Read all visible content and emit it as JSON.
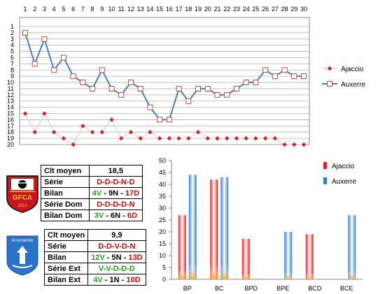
{
  "chart_data": [
    {
      "type": "line",
      "x": [
        1,
        2,
        3,
        4,
        5,
        6,
        7,
        8,
        9,
        10,
        11,
        12,
        13,
        14,
        15,
        16,
        17,
        18,
        19,
        20,
        21,
        22,
        23,
        24,
        25,
        26,
        27,
        28,
        29,
        30
      ],
      "ylim": [
        20,
        1
      ],
      "yticks": [
        1,
        2,
        3,
        4,
        5,
        6,
        7,
        8,
        9,
        10,
        11,
        12,
        13,
        14,
        15,
        16,
        17,
        18,
        19,
        20
      ],
      "legend_position": "right",
      "series": [
        {
          "name": "Ajaccio",
          "color": "#d42020",
          "line_color": "#e0e0e0",
          "values": [
            15,
            18,
            15,
            18,
            19,
            20,
            17,
            18,
            18,
            16,
            19,
            18,
            19,
            18,
            19,
            19,
            19,
            19,
            18,
            19,
            19,
            19,
            19,
            19,
            19,
            19,
            19,
            20,
            20,
            20
          ]
        },
        {
          "name": "Auxerre",
          "color": "#4a7ebb",
          "marker_color": "#c0504d",
          "values": [
            2,
            7,
            3,
            8,
            6,
            9,
            10,
            11,
            8,
            11,
            12,
            10,
            11,
            14,
            16,
            16,
            11,
            13,
            11,
            11,
            12,
            12,
            11,
            10,
            10,
            8,
            9,
            8,
            9,
            9
          ]
        }
      ]
    },
    {
      "type": "bar",
      "categories": [
        "BP",
        "BC",
        "BPD",
        "BPE",
        "BCD",
        "BCE"
      ],
      "ylim": [
        0,
        50
      ],
      "yticks": [
        0,
        5,
        10,
        15,
        20,
        25,
        30,
        35,
        40,
        45,
        50
      ],
      "legend_position": "top-right",
      "series": [
        {
          "name": "Ajaccio",
          "color": "#ee1c1c",
          "values": [
            27,
            42,
            17,
            0,
            19,
            0
          ]
        },
        {
          "name": "Auxerre",
          "color": "#2f7fd8",
          "values": [
            44,
            43,
            0,
            20,
            0,
            27
          ]
        }
      ]
    }
  ],
  "ajaccio": {
    "colors": {
      "green": "#1aa51a",
      "red": "#e00000"
    },
    "clt_label": "Clt moyen",
    "clt_value": "18,5",
    "serie_label": "Série",
    "serie_value": "D-D-D-N-D",
    "bilan_label": "Bilan",
    "bilan_v": "4V",
    "bilan_n": "9N",
    "bilan_d": "17D",
    "dom_label": "Série Dom",
    "dom_value": "D-D-D-D-N",
    "bdom_label": "Bilan Dom",
    "bdom_v": "3V",
    "bdom_n": "6N",
    "bdom_d": "6D",
    "logo_text": "GFCA",
    "logo_year": "1910"
  },
  "auxerre": {
    "clt_label": "Clt moyen",
    "clt_value": "9,9",
    "serie_label": "Série",
    "serie_value": "D-D-V-D-N",
    "bilan_label": "Bilan",
    "bilan_v": "12V",
    "bilan_n": "5N",
    "bilan_d": "13D",
    "ext_label": "Série Ext",
    "ext_value": "V-V-D-D-D",
    "bext_label": "Bilan Ext",
    "bext_v": "4V",
    "bext_n": "1N",
    "bext_d": "10D",
    "logo_text": "AJ AUXERRE"
  },
  "sep": " - "
}
